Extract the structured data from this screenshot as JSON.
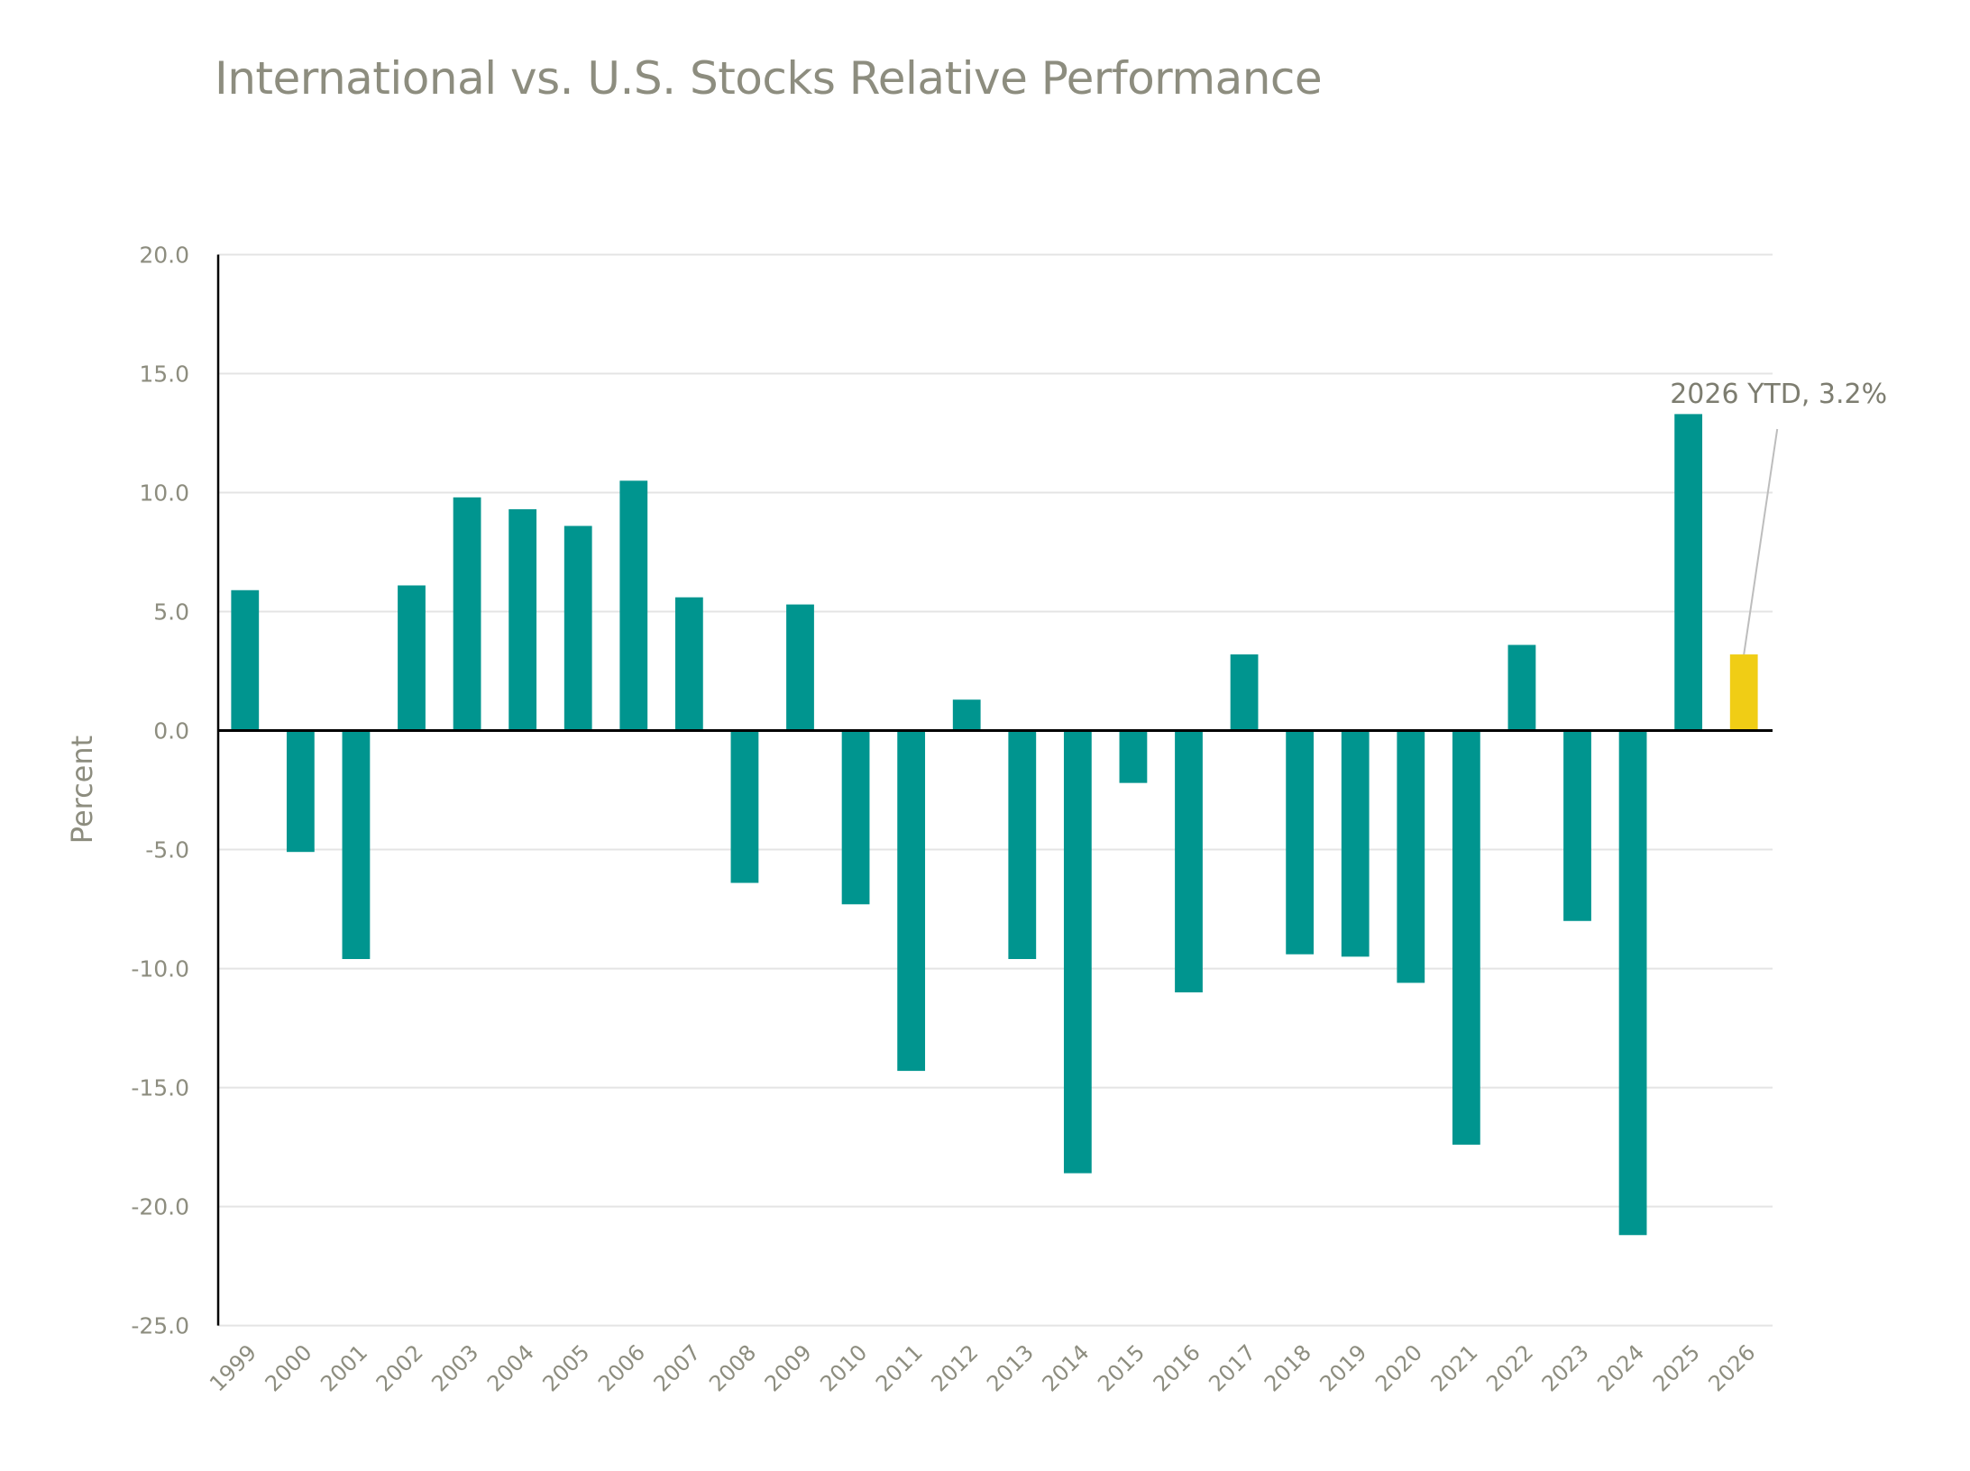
{
  "chart_data": {
    "type": "bar",
    "title": "International vs. U.S. Stocks Relative Performance",
    "xlabel": "",
    "ylabel": "Percent",
    "ylim": [
      -25,
      20
    ],
    "yticks": [
      20,
      15,
      10,
      5,
      0,
      -5,
      -10,
      -15,
      -20,
      -25
    ],
    "ytick_labels": [
      "20.0",
      "15.0",
      "10.0",
      "5.0",
      "0.0",
      "-5.0",
      "-10.0",
      "-15.0",
      "-20.0",
      "-25.0"
    ],
    "grid": "horizontal",
    "categories": [
      "1999",
      "2000",
      "2001",
      "2002",
      "2003",
      "2004",
      "2005",
      "2006",
      "2007",
      "2008",
      "2009",
      "2010",
      "2011",
      "2012",
      "2013",
      "2014",
      "2015",
      "2016",
      "2017",
      "2018",
      "2019",
      "2020",
      "2021",
      "2022",
      "2023",
      "2024",
      "2025",
      "2026"
    ],
    "values": [
      5.9,
      -5.1,
      -9.6,
      6.1,
      9.8,
      9.3,
      8.6,
      10.5,
      5.6,
      -6.4,
      5.3,
      -7.3,
      -14.3,
      1.3,
      -9.6,
      -18.6,
      -2.2,
      -11.0,
      3.2,
      -9.4,
      -9.5,
      -10.6,
      -17.4,
      3.6,
      -8.0,
      -21.2,
      13.3,
      3.2
    ],
    "colors": {
      "default": "#00958f",
      "highlight": "#f0cd15",
      "highlight_category": "2026",
      "text": "#8d8d7f",
      "grid": "#e4e4e4",
      "axis": "#000000",
      "leader_line": "#bdbdbd"
    },
    "annotations": [
      {
        "text": "2026 YTD, 3.2%",
        "category": "2026",
        "value": 3.2
      }
    ]
  }
}
